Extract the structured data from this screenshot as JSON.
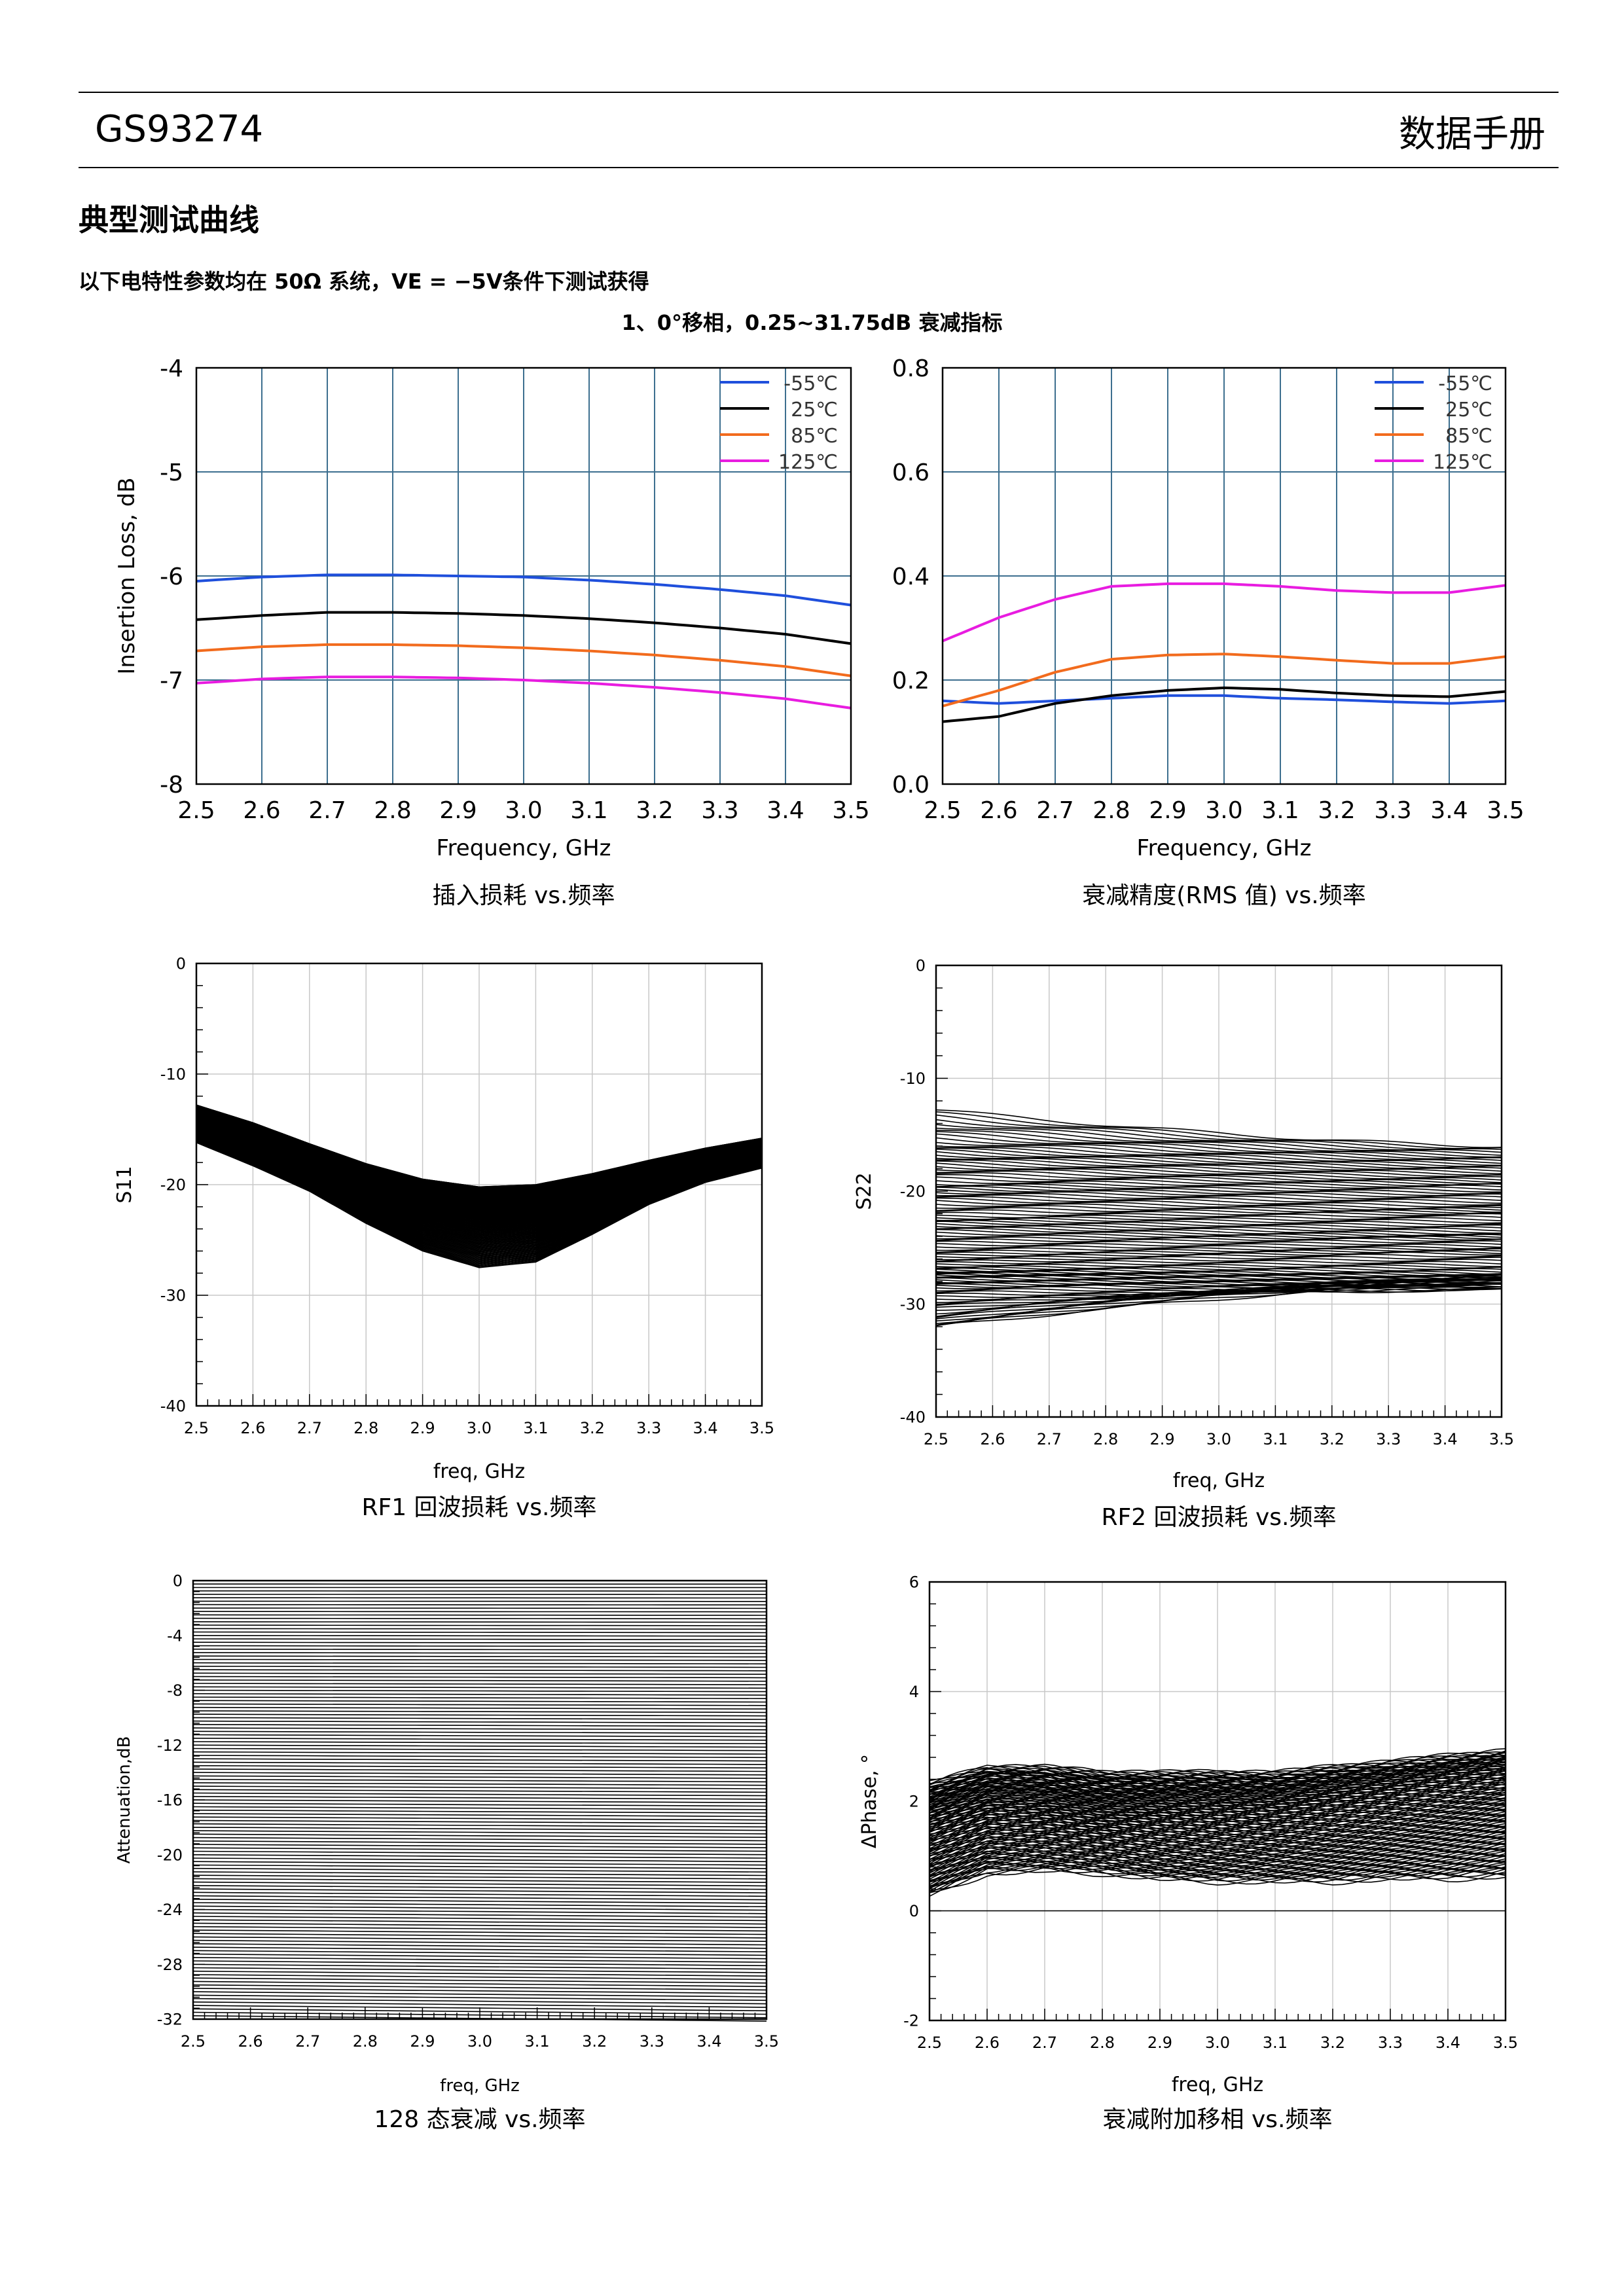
{
  "header": {
    "product": "GS93274",
    "doc_type": "数据手册"
  },
  "section_title": "典型测试曲线",
  "test_condition": "以下电特性参数均在 50Ω 系统，VE = −5V条件下测试获得",
  "subsection": "1、0°移相，0.25~31.75dB 衰减指标",
  "legend_colors": {
    "-55": "#1f4fdc",
    "25": "#000000",
    "85": "#f26b1d",
    "125": "#e81ce0"
  },
  "chart_data": [
    {
      "id": "il",
      "type": "line",
      "caption": "插入损耗 vs.频率",
      "xlabel": "Frequency, GHz",
      "ylabel": "Insertion Loss, dB",
      "xlim": [
        2.5,
        3.5
      ],
      "ylim": [
        -8,
        -4
      ],
      "xticks": [
        "2.5",
        "2.6",
        "2.7",
        "2.8",
        "2.9",
        "3.0",
        "3.1",
        "3.2",
        "3.3",
        "3.4",
        "3.5"
      ],
      "yticks": [
        "-8",
        "-7",
        "-6",
        "-5",
        "-4"
      ],
      "grid": true,
      "legend_position": "top-right",
      "x": [
        2.5,
        2.6,
        2.7,
        2.8,
        2.9,
        3.0,
        3.1,
        3.2,
        3.3,
        3.4,
        3.5
      ],
      "series": [
        {
          "name": "-55℃",
          "color": "#1f4fdc",
          "values": [
            -6.05,
            -6.01,
            -5.99,
            -5.99,
            -6.0,
            -6.01,
            -6.04,
            -6.08,
            -6.13,
            -6.19,
            -6.28
          ]
        },
        {
          "name": "25℃",
          "color": "#000000",
          "values": [
            -6.42,
            -6.38,
            -6.35,
            -6.35,
            -6.36,
            -6.38,
            -6.41,
            -6.45,
            -6.5,
            -6.56,
            -6.65
          ]
        },
        {
          "name": "85℃",
          "color": "#f26b1d",
          "values": [
            -6.72,
            -6.68,
            -6.66,
            -6.66,
            -6.67,
            -6.69,
            -6.72,
            -6.76,
            -6.81,
            -6.87,
            -6.96
          ]
        },
        {
          "name": "125℃",
          "color": "#e81ce0",
          "values": [
            -7.03,
            -6.99,
            -6.97,
            -6.97,
            -6.98,
            -7.0,
            -7.03,
            -7.07,
            -7.12,
            -7.18,
            -7.27
          ]
        }
      ]
    },
    {
      "id": "rms",
      "type": "line",
      "caption": "衰减精度(RMS 值) vs.频率",
      "xlabel": "Frequency, GHz",
      "ylabel": "",
      "xlim": [
        2.5,
        3.5
      ],
      "ylim": [
        0,
        0.8
      ],
      "xticks": [
        "2.5",
        "2.6",
        "2.7",
        "2.8",
        "2.9",
        "3.0",
        "3.1",
        "3.2",
        "3.3",
        "3.4",
        "3.5"
      ],
      "yticks": [
        "0.0",
        "0.2",
        "0.4",
        "0.6",
        "0.8"
      ],
      "grid": true,
      "legend_position": "top-right",
      "x": [
        2.5,
        2.6,
        2.7,
        2.8,
        2.9,
        3.0,
        3.1,
        3.2,
        3.3,
        3.4,
        3.5
      ],
      "series": [
        {
          "name": "-55℃",
          "color": "#1f4fdc",
          "values": [
            0.16,
            0.155,
            0.16,
            0.165,
            0.17,
            0.17,
            0.165,
            0.162,
            0.158,
            0.155,
            0.16
          ]
        },
        {
          "name": "25℃",
          "color": "#000000",
          "values": [
            0.12,
            0.13,
            0.155,
            0.17,
            0.18,
            0.185,
            0.182,
            0.175,
            0.17,
            0.168,
            0.178
          ]
        },
        {
          "name": "85℃",
          "color": "#f26b1d",
          "values": [
            0.15,
            0.18,
            0.215,
            0.24,
            0.248,
            0.25,
            0.245,
            0.238,
            0.232,
            0.232,
            0.245
          ]
        },
        {
          "name": "125℃",
          "color": "#e81ce0",
          "values": [
            0.275,
            0.32,
            0.355,
            0.38,
            0.385,
            0.385,
            0.38,
            0.372,
            0.368,
            0.368,
            0.382
          ]
        }
      ]
    },
    {
      "id": "s11",
      "type": "line",
      "caption": "RF1 回波损耗 vs.频率",
      "xlabel": "freq, GHz",
      "ylabel": "S11",
      "xlim": [
        2.5,
        3.5
      ],
      "ylim": [
        -40,
        0
      ],
      "xticks": [
        "2.5",
        "2.6",
        "2.7",
        "2.8",
        "2.9",
        "3.0",
        "3.1",
        "3.2",
        "3.3",
        "3.4",
        "3.5"
      ],
      "yticks": [
        "-40",
        "-30",
        "-20",
        "-10",
        "0"
      ],
      "grid": true,
      "family": {
        "count": 128,
        "upper": [
          -12.8,
          -14.4,
          -16.3,
          -18.1,
          -19.5,
          -20.2,
          -20.0,
          -19.0,
          -17.8,
          -16.7,
          -15.8
        ],
        "lower": [
          -16.2,
          -18.3,
          -20.6,
          -23.5,
          -26.0,
          -27.5,
          -27.0,
          -24.5,
          -21.8,
          -19.8,
          -18.5
        ]
      }
    },
    {
      "id": "s22",
      "type": "line",
      "caption": "RF2 回波损耗 vs.频率",
      "xlabel": "freq, GHz",
      "ylabel": "S22",
      "xlim": [
        2.5,
        3.5
      ],
      "ylim": [
        -40,
        0
      ],
      "xticks": [
        "2.5",
        "2.6",
        "2.7",
        "2.8",
        "2.9",
        "3.0",
        "3.1",
        "3.2",
        "3.3",
        "3.4",
        "3.5"
      ],
      "yticks": [
        "-40",
        "-30",
        "-20",
        "-10",
        "0"
      ],
      "grid": true,
      "family": {
        "count": 128,
        "start": [
          -12.8,
          -14.5,
          -16.0,
          -17.0,
          -18.0,
          -19.3,
          -20.0,
          -21.0,
          -22.3,
          -22.8,
          -23.5,
          -24.5,
          -25.5,
          -26.2,
          -26.8,
          -27.2,
          -27.5,
          -28.0,
          -28.5,
          -29.5,
          -30.5,
          -31.5,
          -32.0
        ],
        "end": [
          -16.0,
          -16.8,
          -17.5,
          -18.2,
          -19.0,
          -19.6,
          -20.5,
          -21.5,
          -22.0,
          -23.0,
          -23.8,
          -24.2,
          -25.0,
          -25.5,
          -26.5,
          -27.2,
          -27.6,
          -28.0,
          -28.3,
          -28.8,
          -28.0,
          -27.5,
          -28.2
        ]
      }
    },
    {
      "id": "att",
      "type": "line",
      "caption": "128 态衰减 vs.频率",
      "xlabel": "freq, GHz",
      "ylabel": "Attenuation,dB",
      "xlim": [
        2.5,
        3.5
      ],
      "ylim": [
        -32,
        0
      ],
      "xticks": [
        "2.5",
        "2.6",
        "2.7",
        "2.8",
        "2.9",
        "3.0",
        "3.1",
        "3.2",
        "3.3",
        "3.4",
        "3.5"
      ],
      "yticks": [
        "-32",
        "-28",
        "-24",
        "-20",
        "-16",
        "-12",
        "-8",
        "-4",
        "0"
      ],
      "grid": false,
      "states": {
        "count": 128,
        "first": 0,
        "step": -0.25,
        "last": -31.75
      }
    },
    {
      "id": "phase",
      "type": "line",
      "caption": "衰减附加移相 vs.频率",
      "xlabel": "freq, GHz",
      "ylabel": "ΔPhase, °",
      "xlim": [
        2.5,
        3.5
      ],
      "ylim": [
        -2,
        6
      ],
      "xticks": [
        "2.5",
        "2.6",
        "2.7",
        "2.8",
        "2.9",
        "3.0",
        "3.1",
        "3.2",
        "3.3",
        "3.4",
        "3.5"
      ],
      "yticks": [
        "-2",
        "0",
        "2",
        "4",
        "6"
      ],
      "grid": true,
      "family": {
        "count": 128,
        "upper": [
          2.3,
          2.6,
          2.6,
          2.5,
          2.5,
          2.5,
          2.5,
          2.6,
          2.7,
          2.8,
          2.9
        ],
        "lower": [
          0.3,
          0.7,
          0.75,
          0.7,
          0.6,
          0.55,
          0.55,
          0.55,
          0.6,
          0.6,
          0.65
        ]
      }
    }
  ]
}
